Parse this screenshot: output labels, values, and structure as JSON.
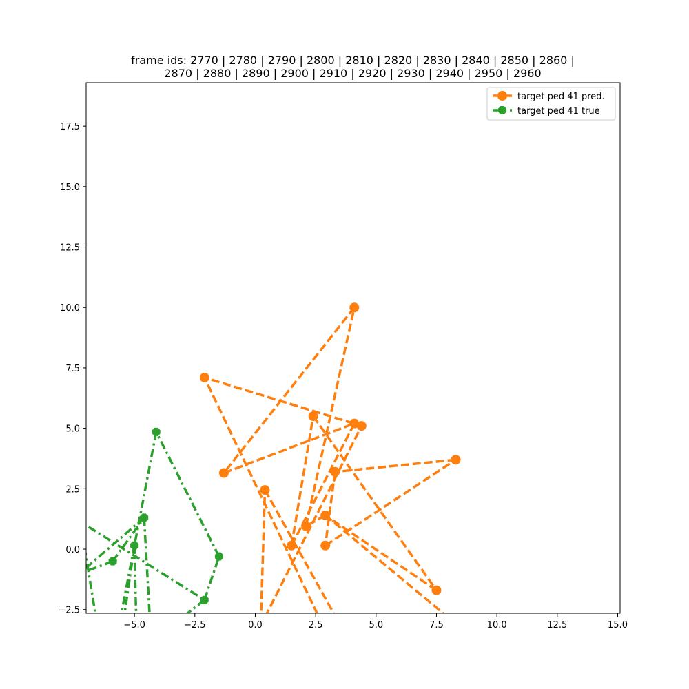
{
  "chart_data": {
    "type": "line",
    "title_line1": "frame ids: 2770 | 2780 | 2790 | 2800 | 2810 | 2820 | 2830 | 2840 | 2850 | 2860 |",
    "title_line2": "2870 | 2880 | 2890 | 2900 | 2910 | 2920 | 2930 | 2940 | 2950 | 2960",
    "xlabel": "",
    "ylabel": "",
    "xlim": [
      -7.0,
      15.1
    ],
    "ylim": [
      -2.65,
      19.3
    ],
    "x_ticks": [
      -5.0,
      -2.5,
      0.0,
      2.5,
      5.0,
      7.5,
      10.0,
      12.5,
      15.0
    ],
    "x_tick_labels": [
      "−5.0",
      "−2.5",
      "0.0",
      "2.5",
      "5.0",
      "7.5",
      "10.0",
      "12.5",
      "15.0"
    ],
    "y_ticks": [
      -2.5,
      0.0,
      2.5,
      5.0,
      7.5,
      10.0,
      12.5,
      15.0,
      17.5
    ],
    "y_tick_labels": [
      "−2.5",
      "0.0",
      "2.5",
      "5.0",
      "7.5",
      "10.0",
      "12.5",
      "15.0",
      "17.5"
    ],
    "grid": false,
    "legend_position": "top-right",
    "series": [
      {
        "name": "target ped 41 pred.",
        "color": "#ff7f0e",
        "linestyle": "dashed",
        "marker": "circle",
        "points": [
          [
            0.2,
            -4.0
          ],
          [
            0.4,
            2.45
          ],
          [
            1.5,
            0.15
          ],
          [
            -1.3,
            3.15
          ],
          [
            4.1,
            5.2
          ],
          [
            3.3,
            3.2
          ],
          [
            8.3,
            3.7
          ],
          [
            2.9,
            0.15
          ],
          [
            4.1,
            10.0
          ],
          [
            2.1,
            0.95
          ],
          [
            -2.1,
            7.1
          ],
          [
            4.4,
            5.1
          ],
          [
            -0.2,
            -4.0
          ]
        ],
        "lines": [
          [
            [
              3.2,
              -4.0
            ],
            [
              -2.1,
              7.1
            ],
            [
              4.4,
              5.1
            ],
            [
              -0.2,
              -4.0
            ]
          ],
          [
            [
              2.4,
              5.5
            ],
            [
              7.5,
              -1.7
            ]
          ],
          [
            [
              7.5,
              -1.7
            ],
            [
              2.9,
              1.4
            ]
          ],
          [
            [
              2.9,
              1.4
            ],
            [
              2.1,
              0.95
            ]
          ],
          [
            [
              2.1,
              0.95
            ],
            [
              4.1,
              10.0
            ]
          ],
          [
            [
              4.1,
              10.0
            ],
            [
              -1.3,
              3.15
            ]
          ],
          [
            [
              -1.3,
              3.15
            ],
            [
              4.1,
              5.2
            ]
          ],
          [
            [
              4.1,
              5.2
            ],
            [
              1.5,
              0.15
            ]
          ],
          [
            [
              1.5,
              0.15
            ],
            [
              2.4,
              5.5
            ]
          ],
          [
            [
              0.2,
              -4.0
            ],
            [
              0.4,
              2.45
            ]
          ],
          [
            [
              0.4,
              2.45
            ],
            [
              4.0,
              -4.0
            ]
          ],
          [
            [
              8.3,
              3.7
            ],
            [
              3.3,
              3.2
            ]
          ],
          [
            [
              3.3,
              3.2
            ],
            [
              2.9,
              0.15
            ]
          ],
          [
            [
              2.9,
              0.15
            ],
            [
              8.3,
              3.7
            ]
          ],
          [
            [
              2.9,
              1.4
            ],
            [
              8.8,
              -3.5
            ]
          ]
        ],
        "markers": [
          [
            4.1,
            10.0
          ],
          [
            -2.1,
            7.1
          ],
          [
            2.4,
            5.5
          ],
          [
            4.1,
            5.2
          ],
          [
            4.4,
            5.1
          ],
          [
            8.3,
            3.7
          ],
          [
            3.3,
            3.2
          ],
          [
            -1.3,
            3.15
          ],
          [
            0.4,
            2.45
          ],
          [
            2.9,
            1.4
          ],
          [
            2.1,
            0.95
          ],
          [
            1.5,
            0.15
          ],
          [
            2.9,
            0.15
          ],
          [
            7.5,
            -1.7
          ]
        ]
      },
      {
        "name": "target ped 41 true",
        "color": "#2ca02c",
        "linestyle": "dashdot",
        "marker": "octagon",
        "lines": [
          [
            [
              -7.5,
              1.3
            ],
            [
              -2.1,
              -2.1
            ]
          ],
          [
            [
              -2.1,
              -2.1
            ],
            [
              -3.5,
              -3.2
            ]
          ],
          [
            [
              -2.1,
              -2.1
            ],
            [
              -1.5,
              -0.3
            ]
          ],
          [
            [
              -1.5,
              -0.3
            ],
            [
              -4.1,
              4.85
            ]
          ],
          [
            [
              -4.1,
              4.85
            ],
            [
              -5.0,
              0.15
            ]
          ],
          [
            [
              -5.0,
              0.15
            ],
            [
              -5.8,
              -4.0
            ]
          ],
          [
            [
              -5.0,
              0.15
            ],
            [
              -4.9,
              -4.0
            ]
          ],
          [
            [
              -4.6,
              1.3
            ],
            [
              -4.3,
              -4.0
            ]
          ],
          [
            [
              -4.6,
              1.3
            ],
            [
              -7.5,
              -1.2
            ]
          ],
          [
            [
              -5.9,
              -0.5
            ],
            [
              -4.6,
              1.3
            ]
          ],
          [
            [
              -5.9,
              -0.5
            ],
            [
              -7.5,
              -1.1
            ]
          ],
          [
            [
              -5.0,
              0.15
            ],
            [
              -5.6,
              -4.0
            ]
          ],
          [
            [
              -7.3,
              1.5
            ],
            [
              -6.4,
              -4.0
            ]
          ]
        ],
        "markers": [
          [
            -4.1,
            4.85
          ],
          [
            -4.6,
            1.3
          ],
          [
            -5.0,
            0.15
          ],
          [
            -5.9,
            -0.5
          ],
          [
            -1.5,
            -0.3
          ],
          [
            -2.1,
            -2.1
          ]
        ]
      }
    ]
  }
}
